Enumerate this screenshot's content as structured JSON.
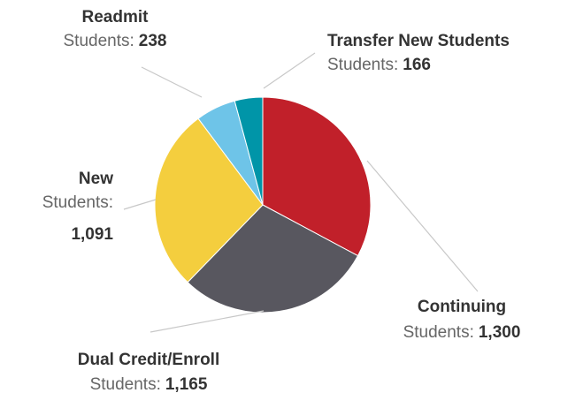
{
  "chart_data": {
    "type": "pie",
    "categories": [
      "Continuing",
      "Dual Credit/Enroll",
      "New",
      "Readmit",
      "Transfer New Students"
    ],
    "values": [
      1300,
      1165,
      1091,
      238,
      166
    ],
    "value_labels": [
      "1,300",
      "1,165",
      "1,091",
      "238",
      "166"
    ],
    "value_prefix": "Students:",
    "colors": [
      "#c1202a",
      "#58575f",
      "#f4ce3e",
      "#6ec4e8",
      "#0095a8"
    ]
  }
}
